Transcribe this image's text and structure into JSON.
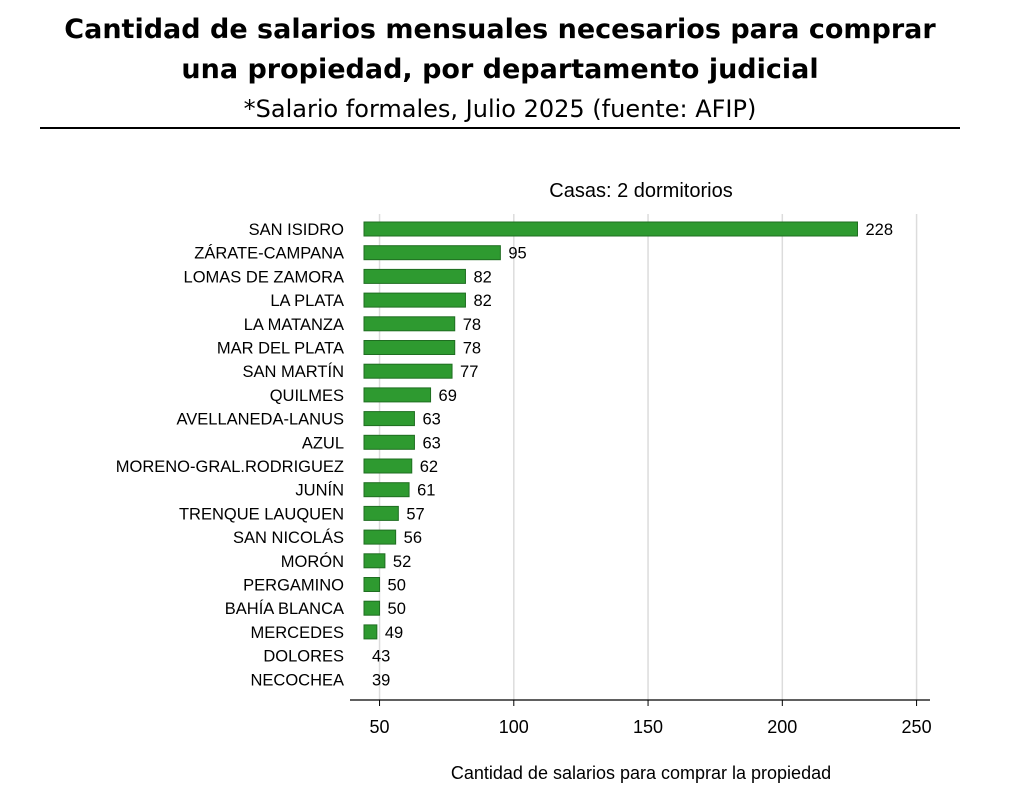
{
  "header": {
    "title": "Cantidad de salarios mensuales necesarios para comprar una propiedad, por departamento judicial",
    "subtitle": "*Salario formales, Julio 2025 (fuente: AFIP)"
  },
  "chart_data": {
    "type": "bar",
    "orientation": "horizontal",
    "title": "Casas: 2 dormitorios",
    "xlabel": "Cantidad de salarios para comprar la propiedad",
    "ylabel": "",
    "categories": [
      "SAN ISIDRO",
      "ZÁRATE-CAMPANA",
      "LOMAS DE ZAMORA",
      "LA PLATA",
      "LA MATANZA",
      "MAR DEL PLATA",
      "SAN MARTÍN",
      "QUILMES",
      "AVELLANEDA-LANUS",
      "AZUL",
      "MORENO-GRAL.RODRIGUEZ",
      "JUNÍN",
      "TRENQUE LAUQUEN",
      "SAN NICOLÁS",
      "MORÓN",
      "PERGAMINO",
      "BAHÍA BLANCA",
      "MERCEDES",
      "DOLORES",
      "NECOCHEA"
    ],
    "values": [
      228,
      95,
      82,
      82,
      78,
      78,
      77,
      69,
      63,
      63,
      62,
      61,
      57,
      56,
      52,
      50,
      50,
      49,
      43,
      39
    ],
    "xlim": [
      39,
      255
    ],
    "xticks": [
      50,
      100,
      150,
      200,
      250
    ],
    "grid": true,
    "bar_color": "#2e9a30",
    "bar_edge_color": "#1f6e21"
  }
}
